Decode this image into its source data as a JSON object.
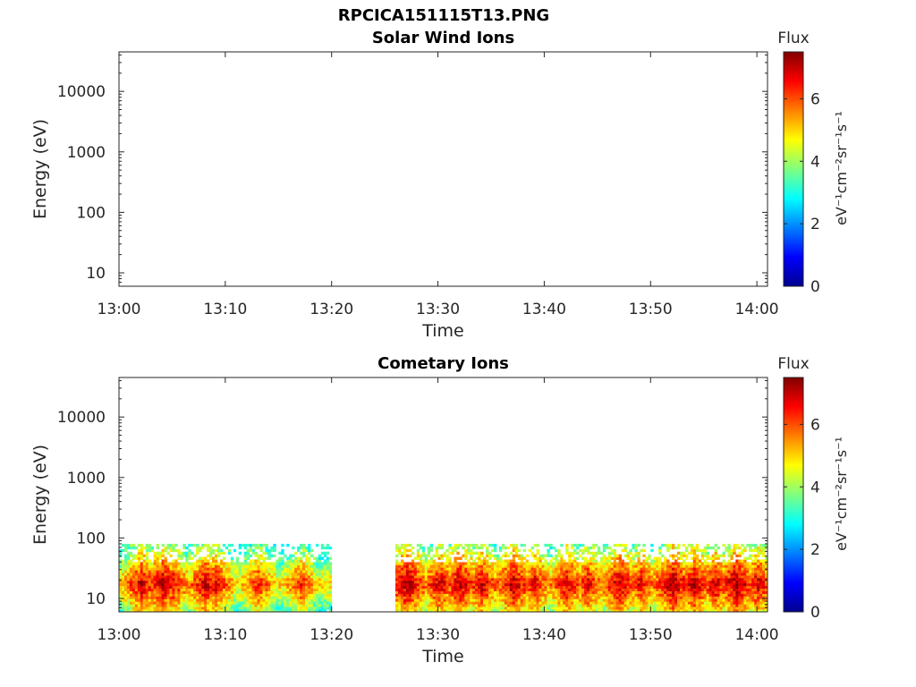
{
  "figure": {
    "title": "RPCICA151115T13.PNG"
  },
  "colorbar": {
    "colormap": [
      "#00008f",
      "#0000ff",
      "#0080ff",
      "#00ffff",
      "#80ff80",
      "#ffff00",
      "#ff8000",
      "#ff0000",
      "#800000"
    ],
    "range": [
      0,
      7.5
    ]
  },
  "chart_data": [
    {
      "type": "heatmap",
      "title": "Solar Wind Ions",
      "xlabel": "Time",
      "ylabel": "Energy (eV)",
      "yscale": "log",
      "xlim": [
        "13:00",
        "14:01"
      ],
      "ylim": [
        6,
        45000
      ],
      "xticks": [
        "13:00",
        "13:10",
        "13:20",
        "13:30",
        "13:40",
        "13:50",
        "14:00"
      ],
      "yticks": [
        10,
        100,
        1000,
        10000
      ],
      "ytick_labels": [
        "10",
        "100",
        "1000",
        "10000"
      ],
      "colorbar_label": "Flux",
      "colorbar_unit": "eV⁻¹cm⁻²sr⁻¹s⁻¹",
      "colorbar_ticks": [
        "0",
        "2",
        "4",
        "6"
      ],
      "colorbar_range": [
        0,
        7.5
      ],
      "data": []
    },
    {
      "type": "heatmap",
      "title": "Cometary Ions",
      "xlabel": "Time",
      "ylabel": "Energy (eV)",
      "yscale": "log",
      "xlim": [
        "13:00",
        "14:01"
      ],
      "ylim": [
        6,
        45000
      ],
      "xticks": [
        "13:00",
        "13:10",
        "13:20",
        "13:30",
        "13:40",
        "13:50",
        "14:00"
      ],
      "yticks": [
        10,
        100,
        1000,
        10000
      ],
      "ytick_labels": [
        "10",
        "100",
        "1000",
        "10000"
      ],
      "colorbar_label": "Flux",
      "colorbar_unit": "eV⁻¹cm⁻²sr⁻¹s⁻¹",
      "colorbar_ticks": [
        "0",
        "2",
        "4",
        "6"
      ],
      "colorbar_range": [
        0,
        7.5
      ],
      "data_energy_range": [
        6,
        80
      ],
      "data_gaps": [
        [
          "13:20",
          "13:26"
        ]
      ],
      "data_intervals": [
        [
          "13:00",
          "13:20"
        ],
        [
          "13:26",
          "14:01"
        ]
      ],
      "peak_flux_energy": [
        12,
        25
      ],
      "flux_peaks": [
        {
          "time": "13:02",
          "value": 7.0
        },
        {
          "time": "13:04",
          "value": 7.2
        },
        {
          "time": "13:05",
          "value": 6.8
        },
        {
          "time": "13:08",
          "value": 7.0
        },
        {
          "time": "13:09",
          "value": 6.8
        },
        {
          "time": "13:13",
          "value": 6.5
        },
        {
          "time": "13:17",
          "value": 6.4
        },
        {
          "time": "13:27",
          "value": 7.4
        },
        {
          "time": "13:30",
          "value": 7.0
        },
        {
          "time": "13:32",
          "value": 7.2
        },
        {
          "time": "13:34",
          "value": 7.0
        },
        {
          "time": "13:37",
          "value": 7.2
        },
        {
          "time": "13:39",
          "value": 6.8
        },
        {
          "time": "13:42",
          "value": 7.0
        },
        {
          "time": "13:44",
          "value": 6.8
        },
        {
          "time": "13:47",
          "value": 7.2
        },
        {
          "time": "13:49",
          "value": 6.8
        },
        {
          "time": "13:52",
          "value": 7.4
        },
        {
          "time": "13:54",
          "value": 7.2
        },
        {
          "time": "13:56",
          "value": 7.0
        },
        {
          "time": "13:58",
          "value": 7.4
        },
        {
          "time": "14:00",
          "value": 7.0
        }
      ]
    }
  ]
}
